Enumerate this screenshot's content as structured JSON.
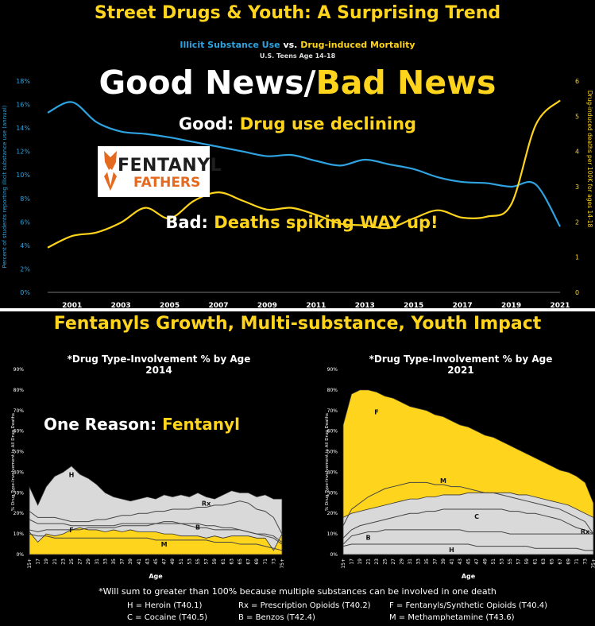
{
  "top": {
    "title": "Street Drugs & Youth: A Surprising Trend",
    "subtitle_a": "Illicit Substance Use",
    "subtitle_vs": " vs. ",
    "subtitle_b": "Drug-induced Mortality",
    "subtitle2": "U.S. Teens Age 14-18",
    "headline_a": "Good News/",
    "headline_b": "Bad News",
    "good_label": "Good: ",
    "good_text": "Drug use declining",
    "bad_label": "Bad: ",
    "bad_text": "Deaths spiking WAY up!",
    "logo_line1": "FENTANYL",
    "logo_line2": "FATHERS"
  },
  "bottom": {
    "title": "Fentanyls Growth, Multi-substance, Youth Impact",
    "reason_label": "One Reason: ",
    "reason_text": "Fentanyl",
    "footnote": "*Will sum to greater than 100% because multiple substances can be involved in one death",
    "legend": [
      "H = Heroin  (T40.1)",
      "Rx = Prescription Opioids (T40.2)",
      "F = Fentanyls/Synthetic Opioids  (T40.4)",
      "C = Cocaine  (T40.5)",
      "B = Benzos  (T42.4)",
      "M = Methamphetamine  (T43.6)"
    ]
  },
  "colors": {
    "yellow": "#ffd41c",
    "blue": "#2ea3e0",
    "gray_fill": "#d9d9d9"
  },
  "chart_data": [
    {
      "type": "line",
      "x": [
        2000,
        2001,
        2002,
        2003,
        2004,
        2005,
        2006,
        2007,
        2008,
        2009,
        2010,
        2011,
        2012,
        2013,
        2014,
        2015,
        2016,
        2017,
        2018,
        2019,
        2020,
        2021
      ],
      "x_ticks": [
        "2001",
        "2003",
        "2005",
        "2007",
        "2009",
        "2011",
        "2013",
        "2015",
        "2017",
        "2019",
        "2021"
      ],
      "series": [
        {
          "name": "Illicit Substance Use",
          "axis": "left",
          "color": "#2ea3e0",
          "values": [
            15.3,
            16.2,
            14.5,
            13.7,
            13.5,
            13.2,
            12.8,
            12.4,
            12.0,
            11.6,
            11.7,
            11.2,
            10.8,
            11.3,
            10.9,
            10.5,
            9.8,
            9.4,
            9.3,
            9.0,
            9.2,
            5.6
          ]
        },
        {
          "name": "Drug-induced Mortality",
          "axis": "right",
          "color": "#ffd41c",
          "values": [
            1.27,
            1.6,
            1.7,
            1.98,
            2.4,
            2.1,
            2.6,
            2.84,
            2.6,
            2.35,
            2.4,
            2.2,
            1.95,
            1.9,
            1.83,
            2.1,
            2.33,
            2.12,
            2.15,
            2.5,
            4.75,
            5.45
          ]
        }
      ],
      "y_left": {
        "label": "Percent of students reporting illicit substance use (annual)",
        "ticks": [
          "0%",
          "2%",
          "4%",
          "6%",
          "8%",
          "10%",
          "12%",
          "14%",
          "16%",
          "18%"
        ],
        "lim": [
          0,
          18
        ]
      },
      "y_right": {
        "label": "Drug-induced deaths per 100K for ages 14-18",
        "ticks": [
          "0",
          "1",
          "2",
          "3",
          "4",
          "5",
          "6"
        ],
        "lim": [
          0,
          6
        ]
      }
    },
    {
      "type": "area",
      "title_line1": "*Drug Type-Involvement % by Age",
      "title_line2": "2014",
      "xlabel": "Age",
      "ylabel": "% Drug Type-Involvement in All Drug Deaths",
      "y_ticks": [
        "0%",
        "10%",
        "20%",
        "30%",
        "40%",
        "50%",
        "60%",
        "70%",
        "80%",
        "90%"
      ],
      "ylim": [
        0,
        90
      ],
      "x_ticks": [
        "15+",
        "17",
        "19",
        "21",
        "23",
        "25",
        "27",
        "29",
        "31",
        "33",
        "35",
        "37",
        "39",
        "41",
        "43",
        "45",
        "47",
        "49",
        "51",
        "53",
        "55",
        "57",
        "59",
        "61",
        "63",
        "65",
        "67",
        "69",
        "71",
        "73",
        "75+"
      ],
      "series": [
        {
          "name": "H",
          "values": [
            33,
            24,
            33,
            38,
            40,
            43,
            39,
            37,
            34,
            30,
            28,
            27,
            26,
            27,
            28,
            27,
            29,
            28,
            29,
            28,
            30,
            28,
            27,
            29,
            31,
            30,
            30,
            28,
            29,
            27,
            27
          ]
        },
        {
          "name": "Rx",
          "values": [
            21,
            18,
            18,
            18,
            17,
            16,
            16,
            16,
            17,
            17,
            18,
            19,
            19,
            20,
            20,
            21,
            21,
            22,
            22,
            22,
            23,
            23,
            24,
            24,
            25,
            26,
            25,
            22,
            21,
            18,
            10
          ]
        },
        {
          "name": "C",
          "values": [
            17,
            15,
            15,
            15,
            15,
            14,
            14,
            14,
            14,
            14,
            14,
            15,
            15,
            15,
            15,
            15,
            16,
            16,
            15,
            15,
            15,
            14,
            14,
            13,
            13,
            12,
            11,
            10,
            9,
            8,
            5
          ]
        },
        {
          "name": "B",
          "values": [
            12,
            11,
            12,
            12,
            12,
            12,
            12,
            13,
            13,
            13,
            13,
            14,
            14,
            14,
            14,
            15,
            15,
            15,
            15,
            14,
            13,
            13,
            12,
            12,
            12,
            12,
            11,
            10,
            10,
            9,
            6
          ]
        },
        {
          "name": "F",
          "values": [
            11,
            6,
            10,
            9,
            10,
            12,
            13,
            12,
            12,
            11,
            12,
            11,
            12,
            11,
            11,
            11,
            10,
            10,
            9,
            9,
            9,
            8,
            9,
            8,
            9,
            9,
            9,
            8,
            8,
            2,
            10
          ]
        },
        {
          "name": "M",
          "values": [
            10,
            9,
            9,
            8,
            8,
            8,
            8,
            8,
            8,
            8,
            8,
            8,
            8,
            8,
            8,
            7,
            7,
            7,
            7,
            7,
            7,
            7,
            6,
            6,
            6,
            5,
            5,
            5,
            4,
            3,
            2
          ]
        }
      ]
    },
    {
      "type": "area",
      "title_line1": "*Drug Type-Involvement % by Age",
      "title_line2": "2021",
      "xlabel": "Age",
      "ylabel": "% Drug Type-Involvement in All Drug Deaths",
      "y_ticks": [
        "0%",
        "10%",
        "20%",
        "30%",
        "40%",
        "50%",
        "60%",
        "70%",
        "80%",
        "90%"
      ],
      "ylim": [
        0,
        90
      ],
      "x_ticks": [
        "15+",
        "17",
        "19",
        "21",
        "23",
        "25",
        "27",
        "29",
        "31",
        "33",
        "35",
        "37",
        "39",
        "41",
        "43",
        "45",
        "47",
        "49",
        "51",
        "53",
        "55",
        "57",
        "59",
        "61",
        "63",
        "65",
        "67",
        "69",
        "71",
        "73",
        "75+"
      ],
      "series": [
        {
          "name": "F",
          "values": [
            63,
            78,
            80,
            80,
            79,
            77,
            76,
            74,
            72,
            71,
            70,
            68,
            67,
            65,
            63,
            62,
            60,
            58,
            57,
            55,
            53,
            51,
            49,
            47,
            45,
            43,
            41,
            40,
            38,
            35,
            25
          ]
        },
        {
          "name": "M",
          "values": [
            14,
            22,
            25,
            28,
            30,
            32,
            33,
            34,
            35,
            35,
            35,
            34,
            34,
            33,
            33,
            32,
            31,
            30,
            30,
            29,
            28,
            27,
            26,
            25,
            24,
            23,
            22,
            20,
            18,
            16,
            10
          ]
        },
        {
          "name": "Rx",
          "values": [
            18,
            20,
            21,
            22,
            23,
            24,
            25,
            26,
            27,
            27,
            28,
            28,
            29,
            29,
            29,
            30,
            30,
            30,
            30,
            30,
            30,
            29,
            29,
            28,
            27,
            26,
            25,
            24,
            22,
            20,
            18
          ]
        },
        {
          "name": "C",
          "values": [
            8,
            12,
            14,
            15,
            16,
            17,
            18,
            19,
            20,
            20,
            21,
            21,
            22,
            22,
            22,
            22,
            22,
            22,
            22,
            22,
            21,
            21,
            20,
            20,
            19,
            18,
            17,
            15,
            13,
            12,
            10
          ]
        },
        {
          "name": "B",
          "values": [
            5,
            9,
            10,
            11,
            11,
            12,
            12,
            12,
            12,
            12,
            12,
            12,
            12,
            12,
            12,
            11,
            11,
            11,
            11,
            11,
            10,
            10,
            10,
            10,
            10,
            10,
            10,
            10,
            10,
            10,
            10
          ]
        },
        {
          "name": "H",
          "values": [
            4,
            5,
            5,
            5,
            5,
            5,
            5,
            5,
            5,
            5,
            5,
            5,
            5,
            5,
            5,
            5,
            4,
            4,
            4,
            4,
            4,
            4,
            4,
            3,
            3,
            3,
            3,
            3,
            3,
            2,
            2
          ]
        }
      ]
    }
  ]
}
